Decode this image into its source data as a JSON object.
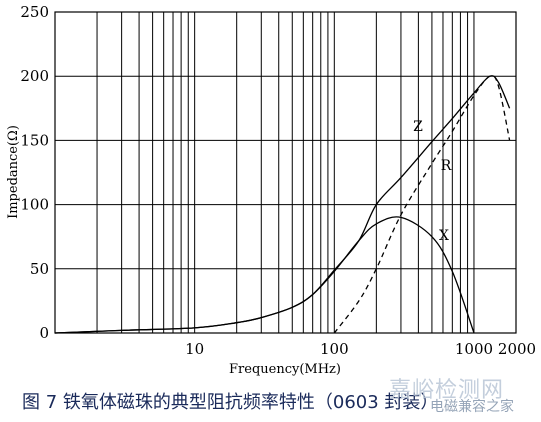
{
  "caption": "图 7  铁氧体磁珠的典型阻抗频率特性（0603 封装）",
  "watermark": {
    "site": "嘉峪检测网",
    "sub": "电磁兼容之家"
  },
  "chart_data": {
    "type": "line",
    "xlabel": "Frequency(MHz)",
    "ylabel": "Impedance(Ω)",
    "x_scale": "log",
    "xlim": [
      1,
      2000
    ],
    "ylim": [
      0,
      250
    ],
    "grid": true,
    "x_ticks": [
      {
        "value": 10,
        "label": "10"
      },
      {
        "value": 100,
        "label": "100"
      },
      {
        "value": 1000,
        "label": "1000"
      },
      {
        "value": 2000,
        "label": "2000"
      }
    ],
    "y_ticks": [
      {
        "value": 0,
        "label": "0"
      },
      {
        "value": 50,
        "label": "50"
      },
      {
        "value": 100,
        "label": "100"
      },
      {
        "value": 150,
        "label": "150"
      },
      {
        "value": 200,
        "label": "200"
      },
      {
        "value": 250,
        "label": "250"
      }
    ],
    "series": [
      {
        "name": "Z",
        "style": "solid",
        "x": [
          1,
          3,
          10,
          20,
          30,
          50,
          70,
          100,
          150,
          200,
          300,
          500,
          700,
          1000,
          1300,
          1500,
          1800
        ],
        "y": [
          0,
          2,
          4,
          8,
          12,
          20,
          30,
          49,
          72,
          100,
          121,
          149,
          167,
          187,
          200,
          195,
          175
        ]
      },
      {
        "name": "R",
        "style": "dashed",
        "x": [
          100,
          150,
          200,
          300,
          500,
          700,
          1000,
          1300,
          1500,
          1800
        ],
        "y": [
          0,
          25,
          50,
          92,
          132,
          157,
          185,
          200,
          192,
          150
        ]
      },
      {
        "name": "X",
        "style": "solid",
        "x": [
          1,
          3,
          10,
          20,
          30,
          50,
          70,
          100,
          150,
          200,
          300,
          500,
          700,
          1000
        ],
        "y": [
          0,
          2,
          4,
          8,
          12,
          20,
          30,
          48,
          72,
          85,
          90,
          75,
          48,
          0
        ]
      }
    ]
  }
}
